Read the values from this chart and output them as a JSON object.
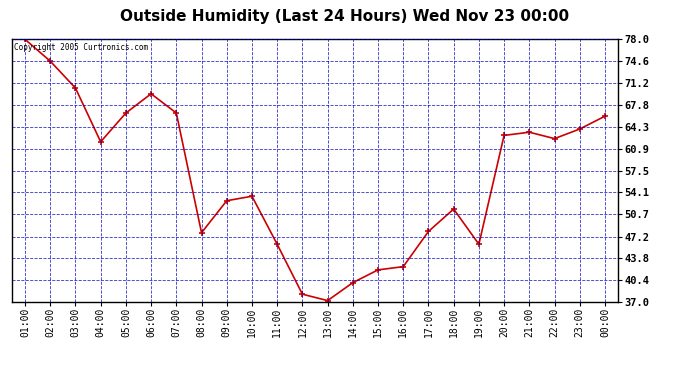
{
  "title": "Outside Humidity (Last 24 Hours) Wed Nov 23 00:00",
  "copyright": "Copyright 2005 Curtronics.com",
  "x_labels": [
    "01:00",
    "02:00",
    "03:00",
    "04:00",
    "05:00",
    "06:00",
    "07:00",
    "08:00",
    "09:00",
    "10:00",
    "11:00",
    "12:00",
    "13:00",
    "14:00",
    "15:00",
    "16:00",
    "17:00",
    "18:00",
    "19:00",
    "20:00",
    "21:00",
    "22:00",
    "23:00",
    "00:00"
  ],
  "y_values": [
    78.0,
    74.6,
    70.4,
    62.0,
    66.5,
    69.5,
    66.5,
    47.8,
    52.8,
    53.5,
    46.0,
    38.2,
    37.2,
    40.0,
    42.0,
    42.5,
    48.0,
    51.5,
    46.0,
    63.0,
    63.5,
    62.5,
    64.0,
    66.0
  ],
  "line_color": "#cc0000",
  "marker_color": "#cc0000",
  "bg_color": "#ffffff",
  "plot_bg_color": "#ffffff",
  "grid_color": "#0000bb",
  "title_fontsize": 11,
  "y_min": 37.0,
  "y_max": 78.0,
  "y_ticks": [
    37.0,
    40.4,
    43.8,
    47.2,
    50.7,
    54.1,
    57.5,
    60.9,
    64.3,
    67.8,
    71.2,
    74.6,
    78.0
  ]
}
